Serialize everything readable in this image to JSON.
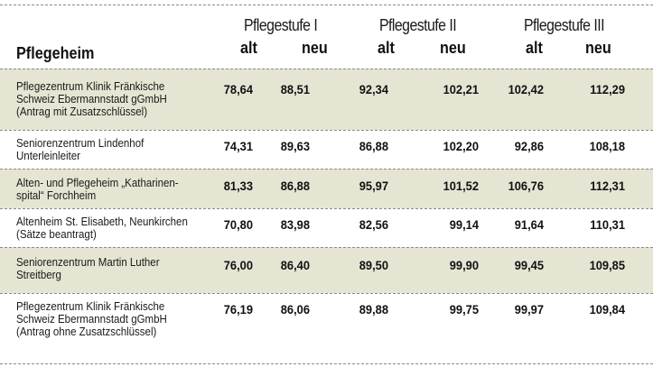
{
  "header": {
    "name_column": "Pflegeheim",
    "groups": [
      {
        "label": "Pflegestufe I",
        "alt": "alt",
        "neu": "neu"
      },
      {
        "label": "Pflegestufe II",
        "alt": "alt",
        "neu": "neu"
      },
      {
        "label": "Pflegestufe III",
        "alt": "alt",
        "neu": "neu"
      }
    ]
  },
  "rows": [
    {
      "name": "Pflegezentrum Klinik Fränkische\nSchweiz Ebermannstadt gGmbH\n(Antrag mit Zusatzschlüssel)",
      "values": [
        "78,64",
        "88,51",
        "92,34",
        "102,21",
        "102,42",
        "112,29"
      ]
    },
    {
      "name": "Seniorenzentrum Lindenhof\nUnterleinleiter",
      "values": [
        "74,31",
        "89,63",
        "86,88",
        "102,20",
        "92,86",
        "108,18"
      ]
    },
    {
      "name": "Alten- und Pflegeheim „Katharinen-\nspital“ Forchheim",
      "values": [
        "81,33",
        "86,88",
        "95,97",
        "101,52",
        "106,76",
        "112,31"
      ]
    },
    {
      "name": "Altenheim St. Elisabeth, Neunkirchen\n(Sätze beantragt)",
      "values": [
        "70,80",
        "83,98",
        "82,56",
        "99,14",
        "91,64",
        "110,31"
      ]
    },
    {
      "name": "Seniorenzentrum Martin Luther\nStreitberg",
      "values": [
        "76,00",
        "86,40",
        "89,50",
        "99,90",
        "99,45",
        "109,85"
      ]
    },
    {
      "name": "Pflegezentrum Klinik Fränkische\nSchweiz Ebermannstadt gGmbH\n(Antrag ohne Zusatzschlüssel)",
      "values": [
        "76,19",
        "86,06",
        "89,88",
        "99,75",
        "99,97",
        "109,84"
      ]
    }
  ]
}
